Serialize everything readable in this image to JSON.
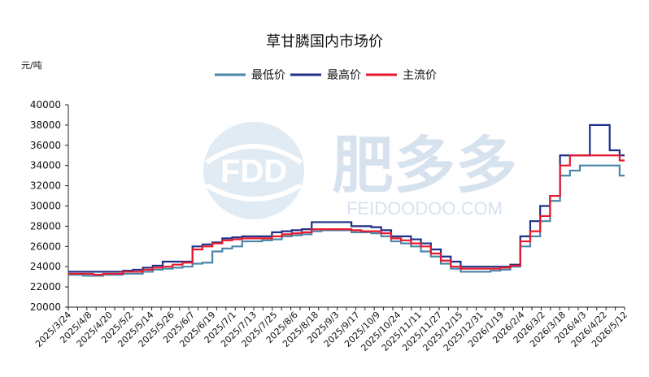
{
  "chart_data": {
    "type": "line",
    "title": "草甘膦国内市场价",
    "unit_label": "元/吨",
    "ylim": [
      20000,
      40000
    ],
    "y_ticks": [
      "20000",
      "22000",
      "24000",
      "26000",
      "28000",
      "30000",
      "32000",
      "34000",
      "36000",
      "38000",
      "40000"
    ],
    "x_ticks": [
      "2025/3/24",
      "2025/4/8",
      "2025/4/20",
      "2025/5/2",
      "2025/5/14",
      "2025/5/26",
      "2025/6/7",
      "2025/6/19",
      "2025/7/1",
      "2025/7/13",
      "2025/7/25",
      "2025/8/6",
      "2025/8/18",
      "2025/9/3",
      "2025/9/17",
      "2025/10/9",
      "2025/10/24",
      "2025/11/11",
      "2025/11/27",
      "2025/12/15",
      "2025/12/31",
      "2026/1/19",
      "2026/2/4",
      "2026/3/2",
      "2026/3/18",
      "2026/4/3",
      "2026/4/22",
      "2026/5/12"
    ],
    "legend": "top-center",
    "grid": false,
    "series": [
      {
        "name": "最低价",
        "color": "#4a86a8",
        "values": [
          23200,
          23200,
          23100,
          23100,
          23200,
          23200,
          23300,
          23300,
          23500,
          23700,
          23800,
          23900,
          24000,
          24300,
          24400,
          25500,
          25800,
          26000,
          26500,
          26500,
          26600,
          26700,
          27000,
          27100,
          27200,
          27500,
          27600,
          27600,
          27600,
          27400,
          27400,
          27300,
          27000,
          26500,
          26300,
          26000,
          25500,
          25000,
          24300,
          23800,
          23500,
          23500,
          23500,
          23600,
          23700,
          24000,
          26000,
          27000,
          28500,
          30500,
          33000,
          33500,
          34000,
          34000,
          34000,
          34000,
          33000
        ]
      },
      {
        "name": "最高价",
        "color": "#1f2f86",
        "values": [
          23500,
          23500,
          23500,
          23500,
          23500,
          23500,
          23600,
          23700,
          23900,
          24100,
          24500,
          24500,
          24500,
          26000,
          26200,
          26400,
          26800,
          26900,
          27000,
          27000,
          27000,
          27400,
          27500,
          27600,
          27700,
          28400,
          28400,
          28400,
          28400,
          28000,
          28000,
          27900,
          27600,
          27000,
          27000,
          26700,
          26300,
          25700,
          25000,
          24500,
          24000,
          24000,
          24000,
          24000,
          24000,
          24200,
          27000,
          28500,
          30000,
          31000,
          35000,
          35000,
          35000,
          38000,
          38000,
          35500,
          35000
        ]
      },
      {
        "name": "主流价",
        "color": "#e8192c",
        "values": [
          23300,
          23300,
          23300,
          23200,
          23300,
          23300,
          23500,
          23500,
          23700,
          23900,
          24000,
          24200,
          24400,
          25700,
          26000,
          26300,
          26600,
          26700,
          26800,
          26800,
          26800,
          27000,
          27200,
          27300,
          27400,
          27700,
          27700,
          27700,
          27700,
          27600,
          27500,
          27500,
          27300,
          26800,
          26600,
          26300,
          26000,
          25300,
          24600,
          24000,
          23800,
          23800,
          23800,
          23800,
          23900,
          24100,
          26500,
          27500,
          29000,
          31000,
          34000,
          35000,
          35000,
          35000,
          35000,
          35000,
          34500
        ]
      }
    ]
  },
  "watermark": {
    "logo_text": "FDD",
    "brand": "肥多多",
    "url": "FEIDOODOO.COM"
  }
}
